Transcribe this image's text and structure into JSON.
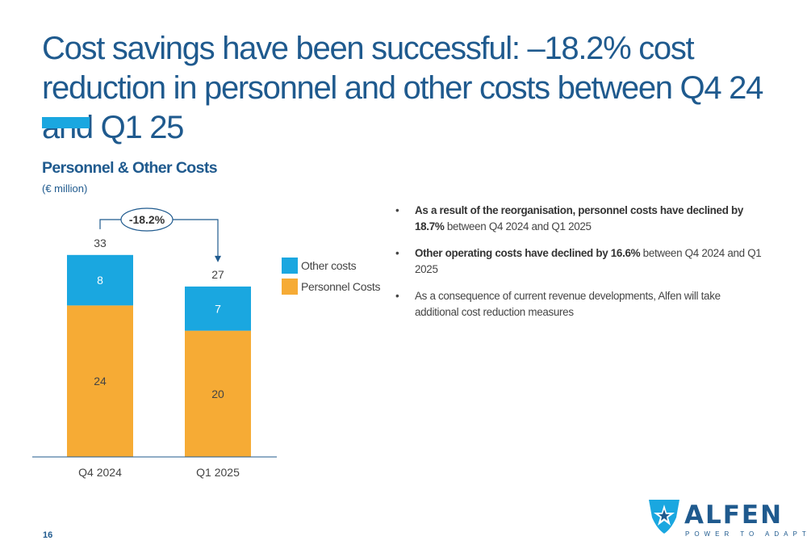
{
  "title": "Cost savings have been successful: –18.2% cost reduction in personnel and other costs between Q4 24 and Q1 25",
  "page_number": "16",
  "colors": {
    "other": "#1aa7e0",
    "personnel": "#f6ab35",
    "brand": "#1f5a8e"
  },
  "chart_data": {
    "type": "bar",
    "stacked": true,
    "title": "Personnel & Other Costs",
    "unit": "(€ million)",
    "categories": [
      "Q4 2024",
      "Q1 2025"
    ],
    "series": [
      {
        "name": "Personnel Costs",
        "values": [
          24,
          20
        ]
      },
      {
        "name": "Other costs",
        "values": [
          8,
          7
        ]
      }
    ],
    "totals": [
      "33",
      "27"
    ],
    "change_label": "-18.2%",
    "legend_position": "right",
    "grid": false,
    "ylim": [
      0,
      33
    ]
  },
  "legend": [
    "Other costs",
    "Personnel Costs"
  ],
  "bullets": [
    {
      "bold": "As a result of the reorganisation, personnel costs have declined by 18.7%",
      "text": " between Q4 2024 and Q1 2025"
    },
    {
      "bold": "Other operating costs have declined by 16.6%",
      "text": " between Q4 2024 and Q1 2025"
    },
    {
      "bold": "",
      "text": "As a consequence of current revenue developments, Alfen will take additional cost reduction measures"
    }
  ],
  "logo": {
    "word": "ALFEN",
    "tagline": "POWER TO ADAPT"
  }
}
